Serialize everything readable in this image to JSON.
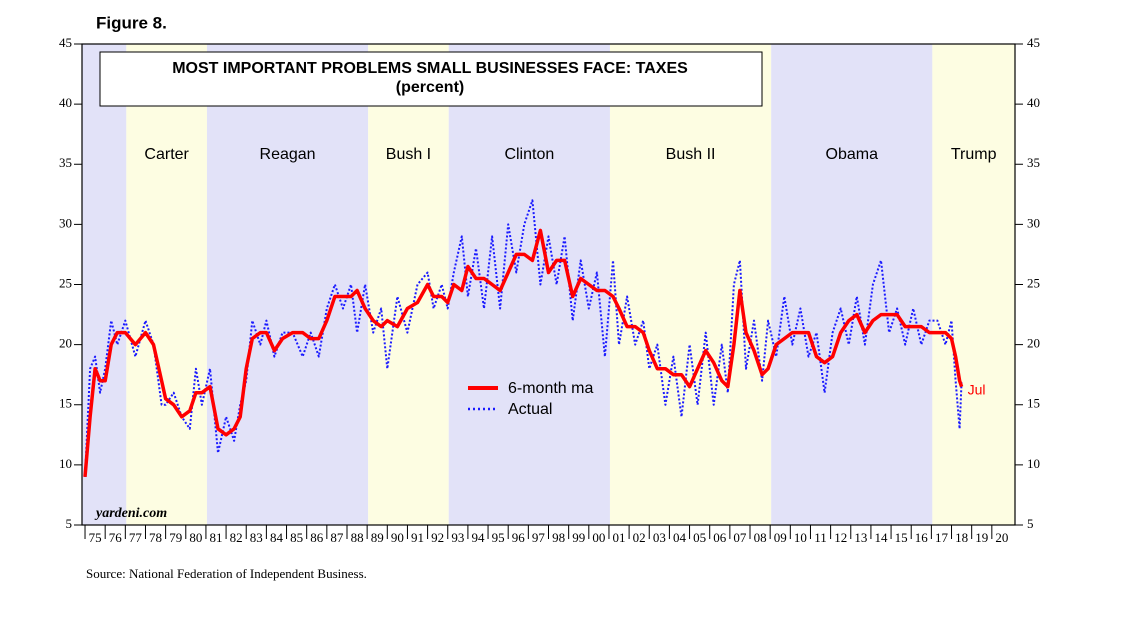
{
  "chart_data": {
    "type": "line",
    "figure_label": "Figure 8.",
    "title": "MOST IMPORTANT PROBLEMS SMALL BUSINESSES FACE: TAXES",
    "subtitle": "(percent)",
    "source": "Source: National Federation of Independent Business.",
    "watermark": "yardeni.com",
    "annotation": "Jul",
    "legend_position": "center",
    "ylim": [
      5,
      45
    ],
    "yticks": [
      5,
      10,
      15,
      20,
      25,
      30,
      35,
      40,
      45
    ],
    "xlim": [
      1974.85,
      2021.15
    ],
    "xticks": [
      {
        "value": 1975,
        "label": "75"
      },
      {
        "value": 1976,
        "label": "76"
      },
      {
        "value": 1977,
        "label": "77"
      },
      {
        "value": 1978,
        "label": "78"
      },
      {
        "value": 1979,
        "label": "79"
      },
      {
        "value": 1980,
        "label": "80"
      },
      {
        "value": 1981,
        "label": "81"
      },
      {
        "value": 1982,
        "label": "82"
      },
      {
        "value": 1983,
        "label": "83"
      },
      {
        "value": 1984,
        "label": "84"
      },
      {
        "value": 1985,
        "label": "85"
      },
      {
        "value": 1986,
        "label": "86"
      },
      {
        "value": 1987,
        "label": "87"
      },
      {
        "value": 1988,
        "label": "88"
      },
      {
        "value": 1989,
        "label": "89"
      },
      {
        "value": 1990,
        "label": "90"
      },
      {
        "value": 1991,
        "label": "91"
      },
      {
        "value": 1992,
        "label": "92"
      },
      {
        "value": 1993,
        "label": "93"
      },
      {
        "value": 1994,
        "label": "94"
      },
      {
        "value": 1995,
        "label": "95"
      },
      {
        "value": 1996,
        "label": "96"
      },
      {
        "value": 1997,
        "label": "97"
      },
      {
        "value": 1998,
        "label": "98"
      },
      {
        "value": 1999,
        "label": "99"
      },
      {
        "value": 2000,
        "label": "00"
      },
      {
        "value": 2001,
        "label": "01"
      },
      {
        "value": 2002,
        "label": "02"
      },
      {
        "value": 2003,
        "label": "03"
      },
      {
        "value": 2004,
        "label": "04"
      },
      {
        "value": 2005,
        "label": "05"
      },
      {
        "value": 2006,
        "label": "06"
      },
      {
        "value": 2007,
        "label": "07"
      },
      {
        "value": 2008,
        "label": "08"
      },
      {
        "value": 2009,
        "label": "09"
      },
      {
        "value": 2010,
        "label": "10"
      },
      {
        "value": 2011,
        "label": "11"
      },
      {
        "value": 2012,
        "label": "12"
      },
      {
        "value": 2013,
        "label": "13"
      },
      {
        "value": 2014,
        "label": "14"
      },
      {
        "value": 2015,
        "label": "15"
      },
      {
        "value": 2016,
        "label": "16"
      },
      {
        "value": 2017,
        "label": "17"
      },
      {
        "value": 2018,
        "label": "18"
      },
      {
        "value": 2019,
        "label": "19"
      },
      {
        "value": 2020,
        "label": "20"
      }
    ],
    "periods": [
      {
        "name": null,
        "start": 1974.85,
        "end": 1977.05,
        "color": "#e2e2f8"
      },
      {
        "name": "Carter",
        "start": 1977.05,
        "end": 1981.05,
        "color": "#fdfde2"
      },
      {
        "name": "Reagan",
        "start": 1981.05,
        "end": 1989.05,
        "color": "#e2e2f8"
      },
      {
        "name": "Bush I",
        "start": 1989.05,
        "end": 1993.05,
        "color": "#fdfde2"
      },
      {
        "name": "Clinton",
        "start": 1993.05,
        "end": 2001.05,
        "color": "#e2e2f8"
      },
      {
        "name": "Bush II",
        "start": 2001.05,
        "end": 2009.05,
        "color": "#fdfde2"
      },
      {
        "name": "Obama",
        "start": 2009.05,
        "end": 2017.05,
        "color": "#e2e2f8"
      },
      {
        "name": "Trump",
        "start": 2017.05,
        "end": 2021.15,
        "color": "#fdfde2"
      }
    ],
    "x": [
      1975.0,
      1975.25,
      1975.5,
      1975.75,
      1976.0,
      1976.3,
      1976.6,
      1977.0,
      1977.5,
      1978.0,
      1978.4,
      1978.8,
      1979.0,
      1979.4,
      1979.8,
      1980.2,
      1980.5,
      1980.8,
      1981.2,
      1981.6,
      1982.0,
      1982.4,
      1982.7,
      1983.0,
      1983.3,
      1983.7,
      1984.0,
      1984.4,
      1984.8,
      1985.3,
      1985.8,
      1986.2,
      1986.6,
      1987.0,
      1987.4,
      1987.8,
      1988.2,
      1988.5,
      1988.9,
      1989.3,
      1989.7,
      1990.0,
      1990.5,
      1991.0,
      1991.5,
      1992.0,
      1992.3,
      1992.7,
      1993.0,
      1993.3,
      1993.7,
      1994.0,
      1994.4,
      1994.8,
      1995.2,
      1995.6,
      1996.0,
      1996.4,
      1996.8,
      1997.2,
      1997.6,
      1998.0,
      1998.4,
      1998.8,
      1999.2,
      1999.6,
      2000.0,
      2000.4,
      2000.8,
      2001.2,
      2001.5,
      2001.9,
      2002.3,
      2002.7,
      2003.0,
      2003.4,
      2003.8,
      2004.2,
      2004.6,
      2005.0,
      2005.4,
      2005.8,
      2006.2,
      2006.6,
      2006.9,
      2007.2,
      2007.5,
      2007.8,
      2008.2,
      2008.6,
      2008.9,
      2009.3,
      2009.7,
      2010.1,
      2010.5,
      2010.9,
      2011.3,
      2011.7,
      2012.1,
      2012.5,
      2012.9,
      2013.3,
      2013.7,
      2014.1,
      2014.5,
      2014.9,
      2015.3,
      2015.7,
      2016.1,
      2016.5,
      2016.9,
      2017.3,
      2017.7,
      2018.0,
      2018.2,
      2018.4,
      2018.5
    ],
    "series": [
      {
        "name": "6-month ma",
        "color": "#ff0000",
        "style": "solid",
        "values": [
          9,
          14,
          18,
          17,
          17,
          20,
          21,
          21,
          20,
          21,
          20,
          17,
          15.5,
          15,
          14,
          14.5,
          16,
          16,
          16.5,
          13,
          12.5,
          13,
          14,
          18,
          20.5,
          21,
          21,
          19.5,
          20.5,
          21,
          21,
          20.5,
          20.5,
          22,
          24,
          24,
          24,
          24.5,
          23,
          22,
          21.5,
          22,
          21.5,
          23,
          23.5,
          25,
          24,
          24,
          23.5,
          25,
          24.5,
          26.5,
          25.5,
          25.5,
          25,
          24.5,
          26,
          27.5,
          27.5,
          27,
          29.5,
          26,
          27,
          27,
          24,
          25.5,
          25,
          24.5,
          24.5,
          24,
          23,
          21.5,
          21.5,
          21,
          19.5,
          18,
          18,
          17.5,
          17.5,
          16.5,
          18,
          19.5,
          18.5,
          17,
          16.5,
          20,
          24.5,
          21,
          19.5,
          17.5,
          18,
          20,
          20.5,
          21,
          21,
          21,
          19,
          18.5,
          19,
          21,
          22,
          22.5,
          21,
          22,
          22.5,
          22.5,
          22.5,
          21.5,
          21.5,
          21.5,
          21,
          21,
          21,
          20.5,
          19,
          17,
          16.5
        ]
      },
      {
        "name": "Actual",
        "color": "#1a1aff",
        "style": "dotted",
        "values": [
          9,
          18,
          19,
          16,
          18,
          22,
          20,
          22,
          19,
          22,
          20,
          15,
          15,
          16,
          14,
          13,
          18,
          15,
          18,
          11,
          14,
          12,
          15,
          17,
          22,
          20,
          22,
          19,
          21,
          21,
          19,
          21,
          19,
          23,
          25,
          23,
          25,
          21,
          25,
          21,
          23,
          18,
          24,
          21,
          25,
          26,
          23,
          25,
          23,
          26,
          29,
          24,
          28,
          23,
          29,
          23,
          30,
          26,
          30,
          32,
          25,
          29,
          25,
          29,
          22,
          27,
          23,
          26,
          19,
          27,
          20,
          24,
          20,
          22,
          18,
          20,
          15,
          19,
          14,
          20,
          15,
          21,
          15,
          20,
          16,
          25,
          27,
          18,
          22,
          17,
          22,
          19,
          24,
          20,
          23,
          19,
          21,
          16,
          21,
          23,
          20,
          24,
          20,
          25,
          27,
          21,
          23,
          20,
          23,
          20,
          22,
          22,
          20,
          22,
          17,
          13,
          17
        ]
      }
    ]
  }
}
